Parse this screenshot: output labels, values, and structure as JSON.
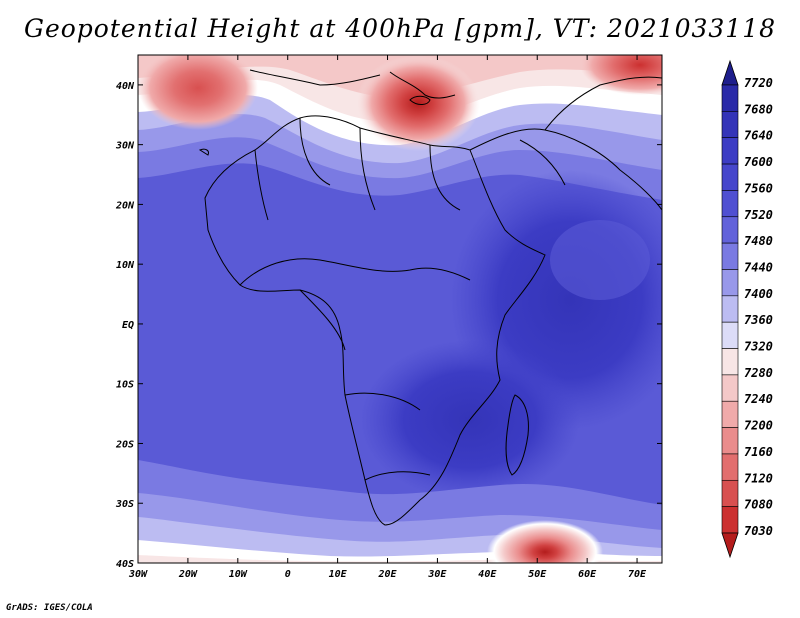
{
  "title": "Geopotential Height at 400hPa [gpm], VT: 2021033118",
  "credit": "GrADS: IGES/COLA",
  "map": {
    "x_ticks": [
      "30W",
      "20W",
      "10W",
      "0",
      "10E",
      "20E",
      "30E",
      "40E",
      "50E",
      "60E",
      "70E"
    ],
    "y_ticks": [
      "40N",
      "30N",
      "20N",
      "10N",
      "EQ",
      "10S",
      "20S",
      "30S",
      "40S"
    ]
  },
  "colorbar": {
    "levels": [
      "7720",
      "7680",
      "7640",
      "7600",
      "7560",
      "7520",
      "7480",
      "7440",
      "7400",
      "7360",
      "7320",
      "7280",
      "7240",
      "7200",
      "7160",
      "7120",
      "7080",
      "7030"
    ],
    "colors": [
      "#1e1e8c",
      "#2a2aa8",
      "#3434b8",
      "#3c3cc4",
      "#4646cc",
      "#5050d2",
      "#6262da",
      "#7a7ae2",
      "#9898ea",
      "#bcbcf2",
      "#dcdcf8",
      "#f8e6e6",
      "#f4c8c8",
      "#f0aaaa",
      "#ea8c8c",
      "#e26e6e",
      "#d85050",
      "#cc3030",
      "#b41c1c"
    ]
  },
  "chart_data": {
    "type": "contour-map",
    "variable": "Geopotential Height at 400hPa",
    "units": "gpm",
    "valid_time": "2021033118",
    "lon_range": [
      -30,
      75
    ],
    "lat_range": [
      -40,
      45
    ],
    "contour_levels": [
      7030,
      7080,
      7120,
      7160,
      7200,
      7240,
      7280,
      7320,
      7360,
      7400,
      7440,
      7480,
      7520,
      7560,
      7600,
      7640,
      7680,
      7720
    ]
  }
}
